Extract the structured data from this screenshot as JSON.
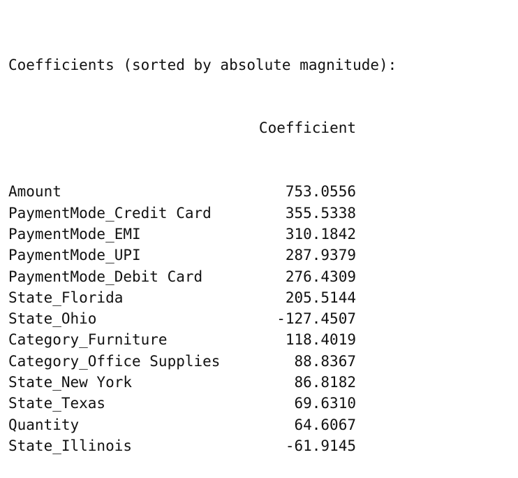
{
  "title": "Coefficients (sorted by absolute magnitude):",
  "column_header": "Coefficient",
  "rows": [
    {
      "label": "Amount",
      "value": "753.0556"
    },
    {
      "label": "PaymentMode_Credit Card",
      "value": "355.5338"
    },
    {
      "label": "PaymentMode_EMI",
      "value": "310.1842"
    },
    {
      "label": "PaymentMode_UPI",
      "value": "287.9379"
    },
    {
      "label": "PaymentMode_Debit Card",
      "value": "276.4309"
    },
    {
      "label": "State_Florida",
      "value": "205.5144"
    },
    {
      "label": "State_Ohio",
      "value": "-127.4507"
    },
    {
      "label": "Category_Furniture",
      "value": "118.4019"
    },
    {
      "label": "Category_Office Supplies",
      "value": "88.8367"
    },
    {
      "label": "State_New York",
      "value": "86.8182"
    },
    {
      "label": "State_Texas",
      "value": "69.6310"
    },
    {
      "label": "Quantity",
      "value": "64.6067"
    },
    {
      "label": "State_Illinois",
      "value": "-61.9145"
    }
  ]
}
